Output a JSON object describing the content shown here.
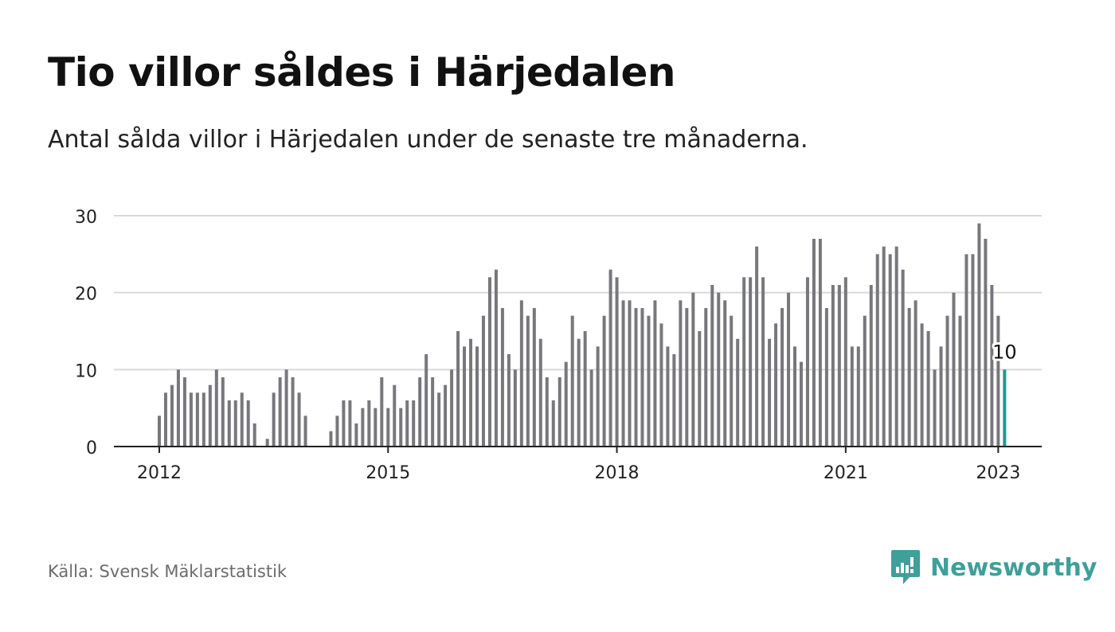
{
  "title": "Tio villor såldes i Härjedalen",
  "subtitle": "Antal sålda villor i Härjedalen under de senaste tre månaderna.",
  "source": "Källa: Svensk Mäklarstatistik",
  "brand": {
    "name": "Newsworthy",
    "icon": "newsworthy-logo-icon",
    "color": "#3f9f9a"
  },
  "chart_data": {
    "type": "bar",
    "title": "Tio villor såldes i Härjedalen",
    "subtitle": "Antal sålda villor i Härjedalen under de senaste tre månaderna.",
    "xlabel": "",
    "ylabel": "",
    "ylim": [
      0,
      30
    ],
    "yticks": [
      0,
      10,
      20,
      30
    ],
    "xticks": [
      "2012",
      "2015",
      "2018",
      "2021",
      "2023"
    ],
    "grid": true,
    "bar_color": "#77777c",
    "highlight_color": "#1a9c8f",
    "highlight_label": "10",
    "series": [
      {
        "x_start": "2012-01",
        "x_step": "1 month",
        "values": [
          4,
          7,
          8,
          10,
          9,
          7,
          7,
          7,
          8,
          10,
          9,
          6,
          6,
          7,
          6,
          3,
          null,
          1,
          7,
          9,
          10,
          9,
          7,
          4,
          null,
          null,
          null,
          2,
          4,
          6,
          6,
          3,
          5,
          6,
          5,
          9,
          5,
          8,
          5,
          6,
          6,
          9,
          12,
          9,
          7,
          8,
          10,
          15,
          13,
          14,
          13,
          17,
          22,
          23,
          18,
          12,
          10,
          19,
          17,
          18,
          14,
          9,
          6,
          9,
          11,
          17,
          14,
          15,
          10,
          13,
          17,
          23,
          22,
          19,
          19,
          18,
          18,
          17,
          19,
          16,
          13,
          12,
          19,
          18,
          20,
          15,
          18,
          21,
          20,
          19,
          17,
          14,
          22,
          22,
          26,
          22,
          14,
          16,
          18,
          20,
          13,
          11,
          22,
          27,
          27,
          18,
          21,
          21,
          22,
          13,
          13,
          17,
          21,
          25,
          26,
          25,
          26,
          23,
          18,
          19,
          16,
          15,
          10,
          13,
          17,
          20,
          17,
          25,
          25,
          29,
          27,
          21,
          17,
          10
        ]
      }
    ]
  }
}
